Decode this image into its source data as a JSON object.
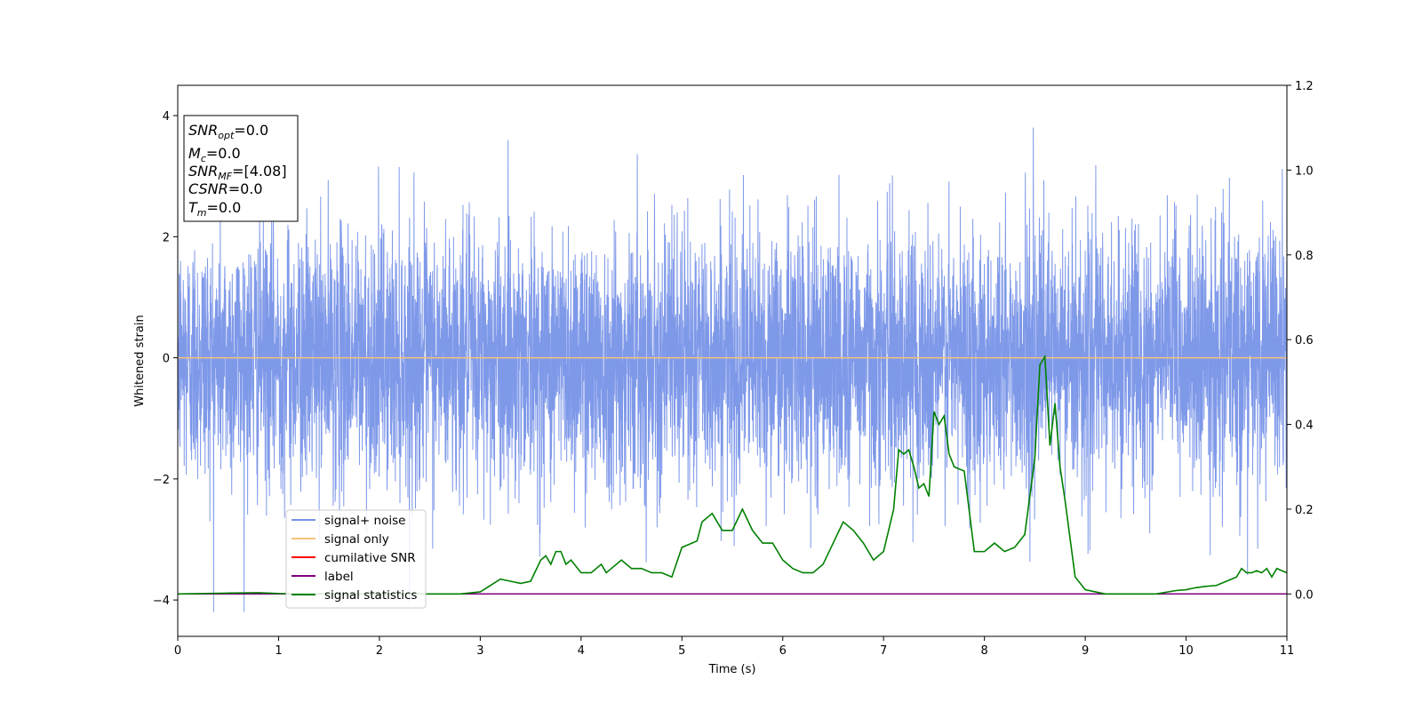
{
  "chart_data": {
    "type": "line",
    "xlabel": "Time (s)",
    "ylabel": "Whitened strain",
    "xlim": [
      0,
      11
    ],
    "ylim": [
      -4.6,
      4.5
    ],
    "y2lim": [
      -0.1,
      1.2
    ],
    "x_ticks": [
      "0",
      "1",
      "2",
      "3",
      "4",
      "5",
      "6",
      "7",
      "8",
      "9",
      "10",
      "11"
    ],
    "y_ticks": [
      "-4",
      "-2",
      "0",
      "2",
      "4"
    ],
    "y2_ticks": [
      "0.0",
      "0.2",
      "0.4",
      "0.6",
      "0.8",
      "1.0",
      "1.2"
    ],
    "grid": false,
    "legend_position": "lower-left",
    "annotation": {
      "snr_opt": {
        "base": "SNR",
        "sub": "opt",
        "value": "=0.0"
      },
      "mc": {
        "base": "M",
        "sub": "c",
        "value": "=0.0"
      },
      "snr_mf": {
        "base": "SNR",
        "sub": "MF",
        "value": "=[4.08]"
      },
      "csnr": {
        "base": "CSNR",
        "value": "=0.0"
      },
      "tm": {
        "base": "T",
        "sub": "m",
        "value": "=0.0"
      }
    },
    "series": [
      {
        "name": "signal+ noise",
        "color": "#7893e8",
        "axis": "left",
        "kind": "noise",
        "note_values": "dense whitened noise, roughly -4.2 to 4.1"
      },
      {
        "name": "signal only",
        "color": "#f5c37a",
        "axis": "left",
        "x": [
          0,
          11
        ],
        "y": [
          0,
          0
        ]
      },
      {
        "name": "cumilative SNR",
        "color": "#ff0000",
        "axis": "right",
        "x": [
          0,
          11
        ],
        "y": [
          0,
          0
        ]
      },
      {
        "name": "label",
        "color": "#800080",
        "axis": "right",
        "x": [
          0,
          11
        ],
        "y": [
          0,
          0
        ]
      },
      {
        "name": "signal statistics",
        "color": "#008000",
        "axis": "right",
        "x": [
          0,
          0.5,
          0.8,
          1.0,
          1.5,
          2.0,
          2.5,
          2.8,
          3.0,
          3.1,
          3.2,
          3.3,
          3.4,
          3.5,
          3.6,
          3.65,
          3.7,
          3.75,
          3.8,
          3.85,
          3.9,
          4.0,
          4.1,
          4.2,
          4.25,
          4.3,
          4.4,
          4.5,
          4.6,
          4.7,
          4.8,
          4.9,
          5.0,
          5.1,
          5.15,
          5.2,
          5.3,
          5.4,
          5.5,
          5.6,
          5.7,
          5.8,
          5.9,
          6.0,
          6.1,
          6.2,
          6.3,
          6.4,
          6.5,
          6.6,
          6.7,
          6.8,
          6.85,
          6.9,
          7.0,
          7.1,
          7.15,
          7.2,
          7.25,
          7.3,
          7.35,
          7.4,
          7.45,
          7.5,
          7.55,
          7.6,
          7.65,
          7.7,
          7.8,
          7.9,
          8.0,
          8.1,
          8.2,
          8.3,
          8.4,
          8.5,
          8.55,
          8.6,
          8.65,
          8.7,
          8.75,
          8.8,
          8.9,
          9.0,
          9.1,
          9.2,
          9.3,
          9.5,
          9.7,
          9.9,
          10.0,
          10.1,
          10.2,
          10.3,
          10.4,
          10.5,
          10.55,
          10.6,
          10.65,
          10.7,
          10.75,
          10.8,
          10.85,
          10.9,
          10.95,
          11.0
        ],
        "y": [
          0.0,
          0.002,
          0.003,
          0.001,
          0.0,
          0.0,
          0.0,
          0.0,
          0.005,
          0.02,
          0.035,
          0.03,
          0.025,
          0.03,
          0.08,
          0.09,
          0.07,
          0.1,
          0.1,
          0.07,
          0.08,
          0.05,
          0.05,
          0.07,
          0.05,
          0.06,
          0.08,
          0.06,
          0.06,
          0.05,
          0.05,
          0.04,
          0.11,
          0.12,
          0.125,
          0.17,
          0.19,
          0.15,
          0.15,
          0.2,
          0.15,
          0.12,
          0.12,
          0.08,
          0.06,
          0.05,
          0.05,
          0.07,
          0.12,
          0.17,
          0.15,
          0.12,
          0.1,
          0.08,
          0.1,
          0.2,
          0.34,
          0.33,
          0.34,
          0.3,
          0.25,
          0.26,
          0.23,
          0.43,
          0.4,
          0.42,
          0.33,
          0.3,
          0.29,
          0.1,
          0.1,
          0.12,
          0.1,
          0.11,
          0.14,
          0.32,
          0.54,
          0.56,
          0.35,
          0.45,
          0.3,
          0.22,
          0.04,
          0.01,
          0.005,
          0.0,
          0.0,
          0.0,
          0.0,
          0.008,
          0.01,
          0.015,
          0.018,
          0.02,
          0.03,
          0.04,
          0.06,
          0.05,
          0.05,
          0.055,
          0.05,
          0.06,
          0.04,
          0.06,
          0.055,
          0.05
        ]
      }
    ]
  }
}
